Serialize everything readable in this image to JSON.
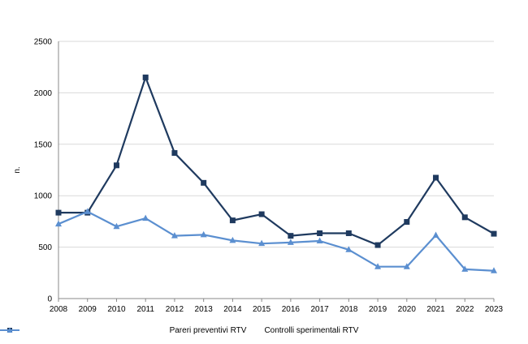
{
  "chart_data": {
    "type": "line",
    "title": "",
    "xlabel": "",
    "ylabel": "n.",
    "x": [
      "2008",
      "2009",
      "2010",
      "2011",
      "2012",
      "2013",
      "2014",
      "2015",
      "2016",
      "2017",
      "2018",
      "2019",
      "2020",
      "2021",
      "2022",
      "2023"
    ],
    "ylim": [
      0,
      2500
    ],
    "yticks": [
      0,
      500,
      1000,
      1500,
      2000,
      2500
    ],
    "grid": true,
    "legend_position": "bottom",
    "series": [
      {
        "name": "Pareri preventivi RTV",
        "color": "#1f3a5f",
        "marker": "square",
        "values": [
          835,
          835,
          1295,
          2150,
          1415,
          1125,
          760,
          820,
          610,
          635,
          635,
          520,
          745,
          1175,
          790,
          630
        ]
      },
      {
        "name": "Controlli sperimentali RTV",
        "color": "#5b8fd0",
        "marker": "triangle",
        "values": [
          725,
          845,
          700,
          780,
          610,
          620,
          565,
          535,
          545,
          560,
          475,
          310,
          310,
          615,
          285,
          270
        ]
      }
    ]
  }
}
